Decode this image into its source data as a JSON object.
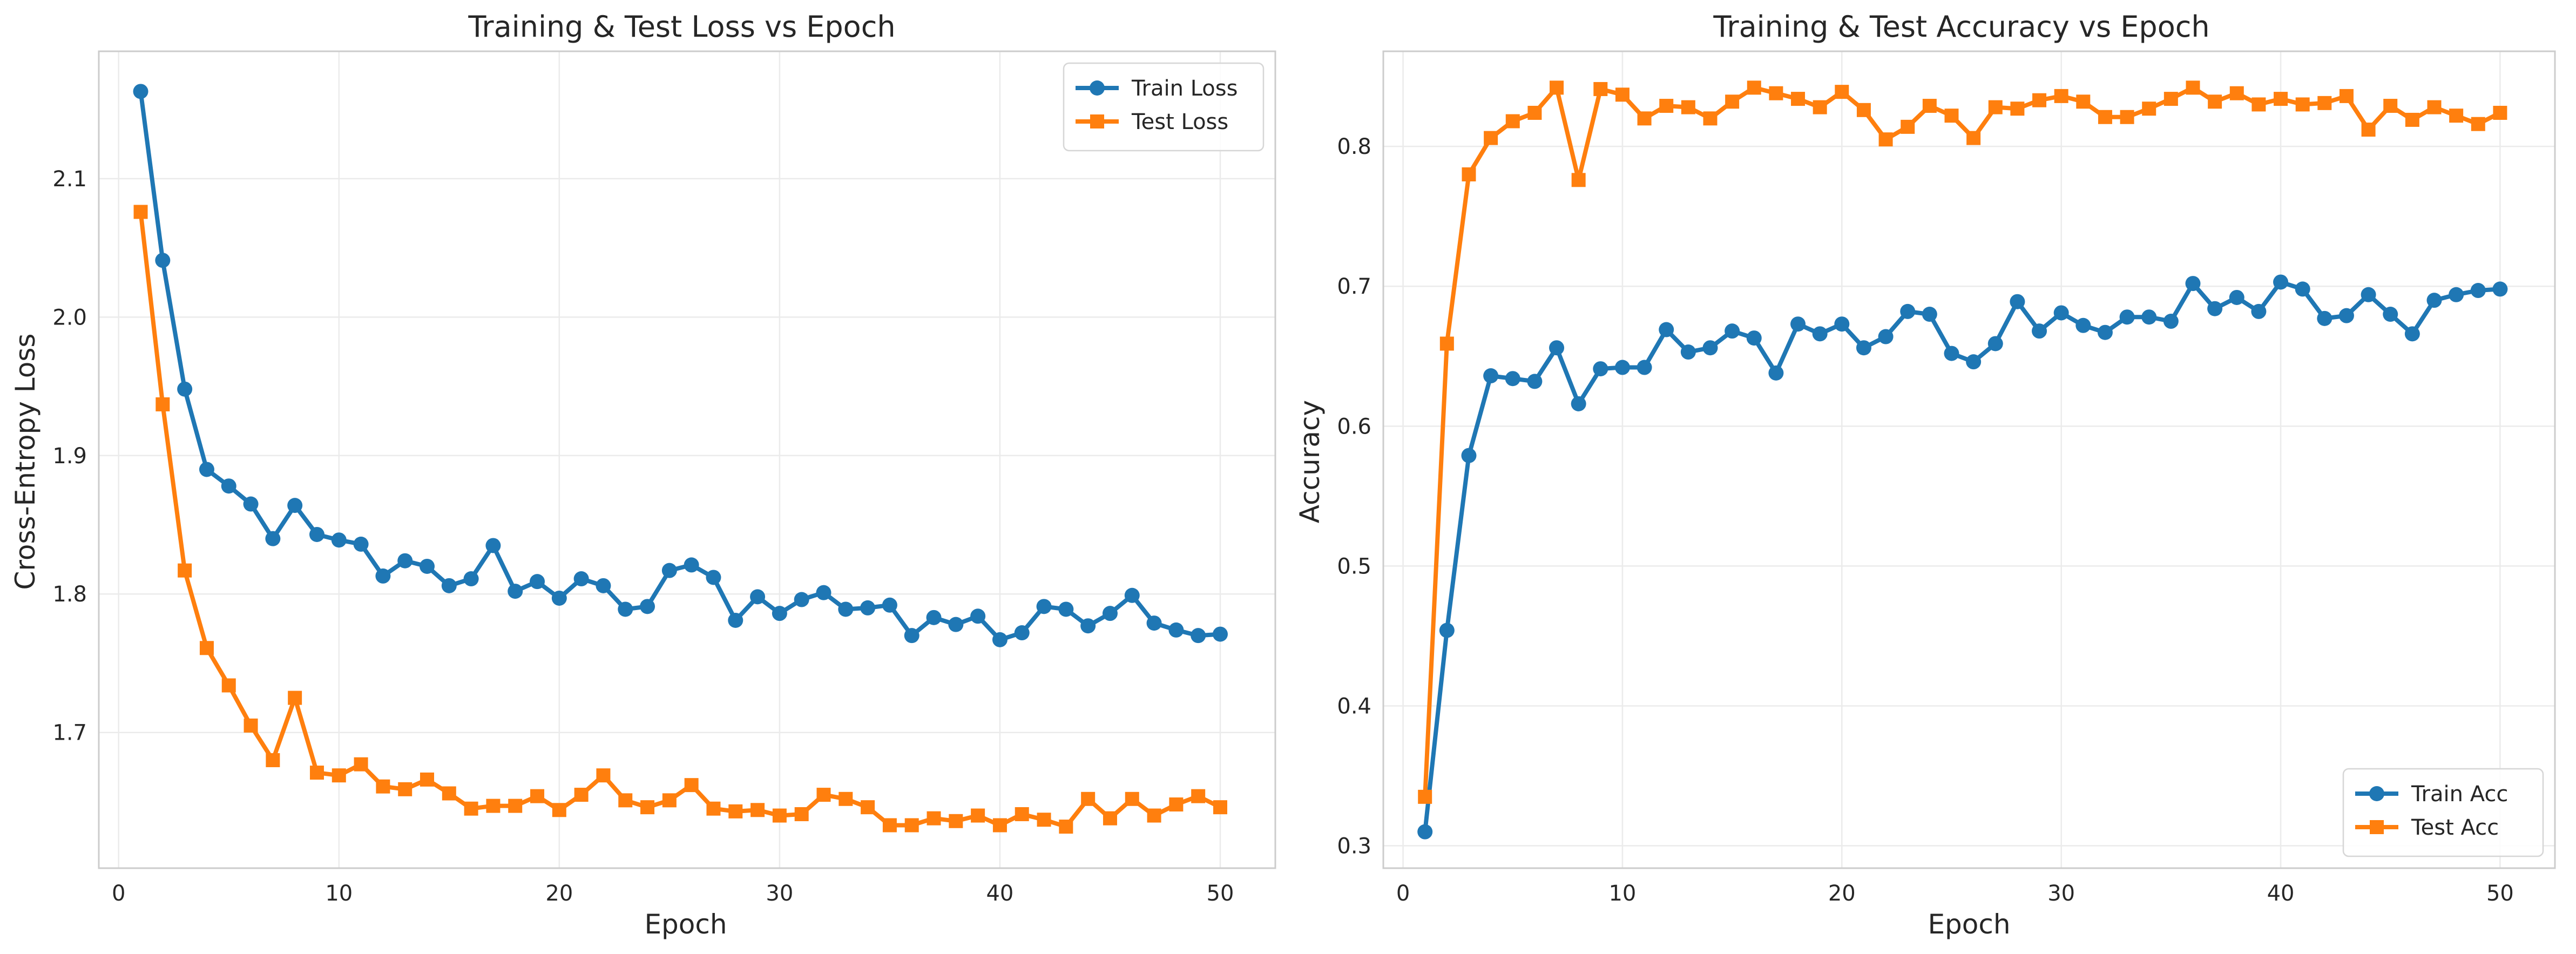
{
  "colors": {
    "train": "#1f77b4",
    "test": "#ff7f0e",
    "grid": "#ebebeb",
    "spine": "#cccccc",
    "text": "#262626"
  },
  "chart_data": [
    {
      "type": "line",
      "title": "Training & Test Loss vs Epoch",
      "xlabel": "Epoch",
      "ylabel": "Cross-Entropy Loss",
      "xlim": [
        -0.9,
        52.5
      ],
      "ylim": [
        1.602,
        2.192
      ],
      "xticks": [
        0,
        10,
        20,
        30,
        40,
        50
      ],
      "xtick_labels": [
        "0",
        "10",
        "20",
        "30",
        "40",
        "50"
      ],
      "yticks": [
        1.7,
        1.8,
        1.9,
        2.0,
        2.1
      ],
      "ytick_labels": [
        "1.7",
        "1.8",
        "1.9",
        "2.0",
        "2.1"
      ],
      "grid": true,
      "legend_position": "top-right",
      "x": [
        1,
        2,
        3,
        4,
        5,
        6,
        7,
        8,
        9,
        10,
        11,
        12,
        13,
        14,
        15,
        16,
        17,
        18,
        19,
        20,
        21,
        22,
        23,
        24,
        25,
        26,
        27,
        28,
        29,
        30,
        31,
        32,
        33,
        34,
        35,
        36,
        37,
        38,
        39,
        40,
        41,
        42,
        43,
        44,
        45,
        46,
        47,
        48,
        49,
        50
      ],
      "series": [
        {
          "name": "Train Loss",
          "marker": "circle",
          "color_key": "train",
          "values": [
            2.163,
            2.041,
            1.948,
            1.89,
            1.878,
            1.865,
            1.84,
            1.864,
            1.843,
            1.839,
            1.836,
            1.813,
            1.824,
            1.82,
            1.806,
            1.811,
            1.835,
            1.802,
            1.809,
            1.797,
            1.811,
            1.806,
            1.789,
            1.791,
            1.817,
            1.821,
            1.812,
            1.781,
            1.798,
            1.786,
            1.796,
            1.801,
            1.789,
            1.79,
            1.792,
            1.77,
            1.783,
            1.778,
            1.784,
            1.767,
            1.772,
            1.791,
            1.789,
            1.777,
            1.786,
            1.799,
            1.779,
            1.774,
            1.77,
            1.771
          ]
        },
        {
          "name": "Test Loss",
          "marker": "square",
          "color_key": "test",
          "values": [
            2.076,
            1.937,
            1.817,
            1.761,
            1.734,
            1.705,
            1.68,
            1.725,
            1.671,
            1.669,
            1.677,
            1.661,
            1.659,
            1.666,
            1.656,
            1.645,
            1.647,
            1.647,
            1.654,
            1.644,
            1.655,
            1.669,
            1.651,
            1.646,
            1.651,
            1.662,
            1.645,
            1.643,
            1.644,
            1.64,
            1.641,
            1.655,
            1.652,
            1.646,
            1.633,
            1.633,
            1.638,
            1.636,
            1.64,
            1.633,
            1.641,
            1.637,
            1.632,
            1.652,
            1.638,
            1.652,
            1.64,
            1.648,
            1.654,
            1.646
          ]
        }
      ]
    },
    {
      "type": "line",
      "title": "Training & Test Accuracy vs Epoch",
      "xlabel": "Epoch",
      "ylabel": "Accuracy",
      "xlim": [
        -0.9,
        52.5
      ],
      "ylim": [
        0.284,
        0.868
      ],
      "xticks": [
        0,
        10,
        20,
        30,
        40,
        50
      ],
      "xtick_labels": [
        "0",
        "10",
        "20",
        "30",
        "40",
        "50"
      ],
      "yticks": [
        0.3,
        0.4,
        0.5,
        0.6,
        0.7,
        0.8
      ],
      "ytick_labels": [
        "0.3",
        "0.4",
        "0.5",
        "0.6",
        "0.7",
        "0.8"
      ],
      "grid": true,
      "legend_position": "bottom-right",
      "x": [
        1,
        2,
        3,
        4,
        5,
        6,
        7,
        8,
        9,
        10,
        11,
        12,
        13,
        14,
        15,
        16,
        17,
        18,
        19,
        20,
        21,
        22,
        23,
        24,
        25,
        26,
        27,
        28,
        29,
        30,
        31,
        32,
        33,
        34,
        35,
        36,
        37,
        38,
        39,
        40,
        41,
        42,
        43,
        44,
        45,
        46,
        47,
        48,
        49,
        50
      ],
      "series": [
        {
          "name": "Train Acc",
          "marker": "circle",
          "color_key": "train",
          "values": [
            0.31,
            0.454,
            0.579,
            0.636,
            0.634,
            0.632,
            0.656,
            0.616,
            0.641,
            0.642,
            0.642,
            0.669,
            0.653,
            0.656,
            0.668,
            0.663,
            0.638,
            0.673,
            0.666,
            0.673,
            0.656,
            0.664,
            0.682,
            0.68,
            0.652,
            0.646,
            0.659,
            0.689,
            0.668,
            0.681,
            0.672,
            0.667,
            0.678,
            0.678,
            0.675,
            0.702,
            0.684,
            0.692,
            0.682,
            0.703,
            0.698,
            0.677,
            0.679,
            0.694,
            0.68,
            0.666,
            0.69,
            0.694,
            0.697,
            0.698
          ]
        },
        {
          "name": "Test Acc",
          "marker": "square",
          "color_key": "test",
          "values": [
            0.335,
            0.659,
            0.78,
            0.806,
            0.818,
            0.824,
            0.842,
            0.776,
            0.841,
            0.837,
            0.82,
            0.829,
            0.828,
            0.82,
            0.832,
            0.842,
            0.838,
            0.834,
            0.828,
            0.839,
            0.826,
            0.805,
            0.814,
            0.829,
            0.822,
            0.806,
            0.828,
            0.827,
            0.833,
            0.836,
            0.832,
            0.821,
            0.821,
            0.827,
            0.834,
            0.842,
            0.832,
            0.838,
            0.83,
            0.834,
            0.83,
            0.831,
            0.836,
            0.812,
            0.829,
            0.819,
            0.828,
            0.822,
            0.816,
            0.824
          ]
        }
      ]
    }
  ]
}
